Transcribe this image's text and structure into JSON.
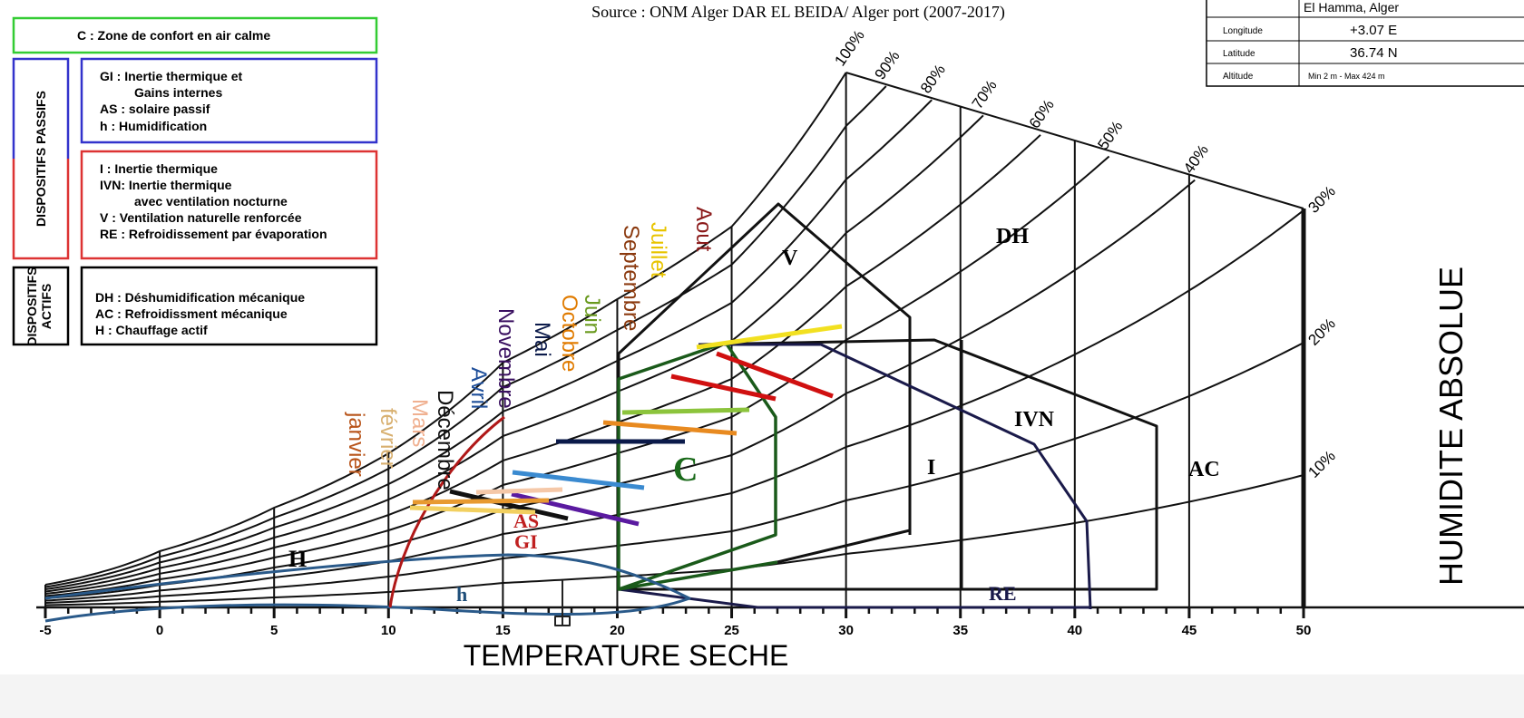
{
  "source": "Source : ONM Alger DAR EL BEIDA/ Alger port (2007-2017)",
  "info_table": {
    "rows": [
      [
        "",
        "El Hamma, Alger"
      ],
      [
        "Longitude",
        "+3.07 E"
      ],
      [
        "Latitude",
        "36.74 N"
      ],
      [
        "Altitude",
        "Min 2 m - Max 424 m"
      ]
    ]
  },
  "legend": {
    "comfort": "C   :  Zone de confort en air calme",
    "passive_title": "DISPOSITIFS PASSIFS",
    "passive_blue": [
      "GI  :  Inertie thermique et",
      "Gains internes",
      "AS :  solaire passif",
      "h     :  Humidification"
    ],
    "passive_red": [
      "I     :  Inertie thermique",
      "IVN:  Inertie thermique",
      "avec ventilation nocturne",
      "V    :  Ventilation naturelle renforcée",
      "RE :  Refroidissement par évaporation"
    ],
    "active_title": [
      "DISPOSITIFS",
      "ACTIFS"
    ],
    "active": [
      "DH :  Déshumidification mécanique",
      "AC :  Refroidissment mécanique",
      "H    :  Chauffage actif"
    ]
  },
  "chart_data": {
    "type": "psychrometric",
    "x_axis_title": "TEMPERATURE SECHE",
    "y_axis_title": "HUMIDITE ABSOLUE",
    "xlim": [
      -5,
      50
    ],
    "xticks": [
      -5,
      0,
      5,
      10,
      15,
      20,
      25,
      30,
      35,
      40,
      45,
      50
    ],
    "rh_curves": [
      {
        "value": 100,
        "label": "100%"
      },
      {
        "value": 90,
        "label": "90%"
      },
      {
        "value": 80,
        "label": "80%"
      },
      {
        "value": 70,
        "label": "70%"
      },
      {
        "value": 60,
        "label": "60%"
      },
      {
        "value": 50,
        "label": "50%"
      },
      {
        "value": 40,
        "label": "40%"
      },
      {
        "value": 30,
        "label": "30%"
      },
      {
        "value": 20,
        "label": "20%"
      },
      {
        "value": 10,
        "label": "10%"
      }
    ],
    "months": [
      {
        "name": "Aout",
        "color": "#8b1a1a"
      },
      {
        "name": "Juillet",
        "color": "#e8c400"
      },
      {
        "name": "Septembre",
        "color": "#8b3a0f"
      },
      {
        "name": "Juin",
        "color": "#6a9a1f"
      },
      {
        "name": "Octobre",
        "color": "#e07b00"
      },
      {
        "name": "Mai",
        "color": "#0b1a4a"
      },
      {
        "name": "Novembre",
        "color": "#3a1060"
      },
      {
        "name": "Avril",
        "color": "#1f4f9a"
      },
      {
        "name": "Décembre",
        "color": "#111111"
      },
      {
        "name": "Mars",
        "color": "#f0b090"
      },
      {
        "name": "février",
        "color": "#d8b070"
      },
      {
        "name": "janvier",
        "color": "#b8541a"
      }
    ],
    "zones": [
      {
        "name": "C",
        "color": "#1a6a1a"
      },
      {
        "name": "V",
        "color": "#000000"
      },
      {
        "name": "DH",
        "color": "#000000"
      },
      {
        "name": "I",
        "color": "#000000"
      },
      {
        "name": "IVN",
        "color": "#000000"
      },
      {
        "name": "AC",
        "color": "#000000"
      },
      {
        "name": "RE",
        "color": "#1a1a4a"
      },
      {
        "name": "H",
        "color": "#000000"
      },
      {
        "name": "h",
        "color": "#1f4f7a"
      },
      {
        "name": "AS",
        "color": "#c02020"
      },
      {
        "name": "GI",
        "color": "#c02020"
      }
    ]
  }
}
